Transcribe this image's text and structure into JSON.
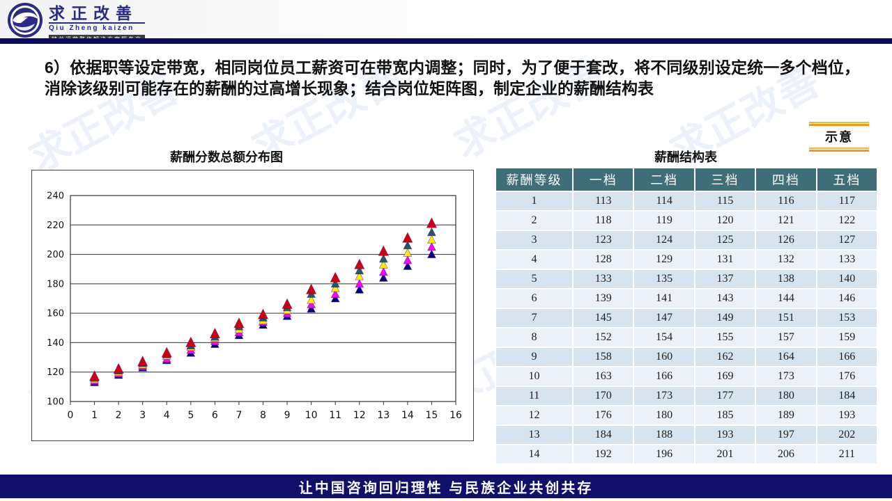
{
  "header": {
    "logo_title": "求正改善",
    "logo_subtitle": "Qiu Zheng kaizen",
    "logo_tagline": "精益运营整体解决方案服务商"
  },
  "title": "6）依据职等设定带宽，相同岗位员工薪资可在带宽内调整；同时，为了便于套改，将不同级别设定统一多个档位，消除该级别可能存在的薪酬的过高增长现象；结合岗位矩阵图，制定企业的薪酬结构表",
  "badge": {
    "label": "示意"
  },
  "watermark": {
    "text": "求正改善"
  },
  "chart_data": {
    "type": "scatter",
    "title": "薪酬分数总额分布图",
    "xlabel": "",
    "ylabel": "",
    "xlim": [
      0,
      16
    ],
    "ylim": [
      100,
      240
    ],
    "xtick_step": 1,
    "ytick_step": 20,
    "grid": true,
    "legend_position": "none",
    "marker": "triangle",
    "x": [
      1,
      2,
      3,
      4,
      5,
      6,
      7,
      8,
      9,
      10,
      11,
      12,
      13,
      14,
      15
    ],
    "series": [
      {
        "name": "一档",
        "color": "#000080",
        "values": [
          113,
          118,
          123,
          128,
          133,
          139,
          145,
          152,
          158,
          163,
          170,
          176,
          184,
          192,
          200
        ]
      },
      {
        "name": "二档",
        "color": "#ff00ff",
        "values": [
          114,
          119,
          124,
          129,
          135,
          141,
          147,
          154,
          160,
          166,
          173,
          180,
          188,
          196,
          205
        ]
      },
      {
        "name": "三档",
        "color": "#ffee00",
        "values": [
          115,
          120,
          125,
          131,
          137,
          143,
          149,
          155,
          162,
          169,
          177,
          185,
          193,
          201,
          210
        ]
      },
      {
        "name": "四档",
        "color": "#1f5868",
        "values": [
          116,
          121,
          126,
          132,
          138,
          144,
          151,
          157,
          164,
          173,
          180,
          189,
          197,
          206,
          215
        ]
      },
      {
        "name": "五档",
        "color": "#cc0011",
        "values": [
          117,
          122,
          127,
          133,
          140,
          146,
          153,
          159,
          166,
          176,
          184,
          193,
          202,
          211,
          221
        ]
      }
    ]
  },
  "table": {
    "title": "薪酬结构表",
    "headers": [
      "薪酬等级",
      "一档",
      "二档",
      "三档",
      "四档",
      "五档"
    ],
    "rows": [
      [
        "1",
        "113",
        "114",
        "115",
        "116",
        "117"
      ],
      [
        "2",
        "118",
        "119",
        "120",
        "121",
        "122"
      ],
      [
        "3",
        "123",
        "124",
        "125",
        "126",
        "127"
      ],
      [
        "4",
        "128",
        "129",
        "131",
        "132",
        "133"
      ],
      [
        "5",
        "133",
        "135",
        "137",
        "138",
        "140"
      ],
      [
        "6",
        "139",
        "141",
        "143",
        "144",
        "146"
      ],
      [
        "7",
        "145",
        "147",
        "149",
        "151",
        "153"
      ],
      [
        "8",
        "152",
        "154",
        "155",
        "157",
        "159"
      ],
      [
        "9",
        "158",
        "160",
        "162",
        "164",
        "166"
      ],
      [
        "10",
        "163",
        "166",
        "169",
        "173",
        "176"
      ],
      [
        "11",
        "170",
        "173",
        "177",
        "180",
        "184"
      ],
      [
        "12",
        "176",
        "180",
        "185",
        "189",
        "193"
      ],
      [
        "13",
        "184",
        "188",
        "193",
        "197",
        "202"
      ],
      [
        "14",
        "192",
        "196",
        "201",
        "206",
        "211"
      ]
    ]
  },
  "footer": {
    "text": "让中国咨询回归理性  与民族企业共创共存"
  },
  "colors": {
    "navy_rule": "#0b0b62",
    "footer_bar": "#10106a",
    "table_header": "#3d6e79",
    "row_odd": "#d6e4f0",
    "row_even": "#ebf1f8",
    "badge_orange": "#ef9a10",
    "logo_navy": "#2b2b85"
  }
}
